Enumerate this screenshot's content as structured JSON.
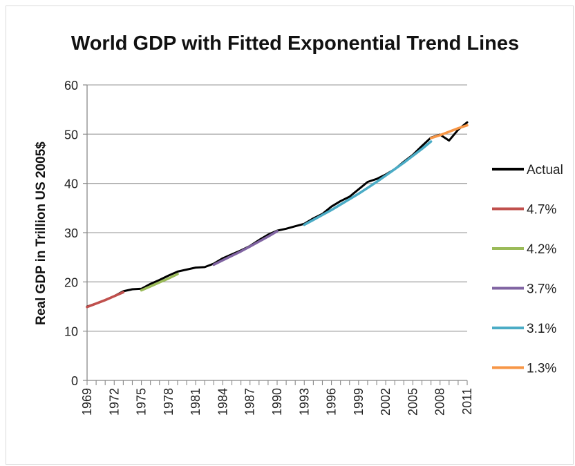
{
  "chart_data": {
    "type": "line",
    "title": "World GDP with Fitted Exponential Trend Lines",
    "ylabel": "Real GDP in Trillion US 2005$",
    "xlabel": "",
    "ylim": [
      0,
      60
    ],
    "yticks": [
      0,
      10,
      20,
      30,
      40,
      50,
      60
    ],
    "xlim": [
      1969,
      2011
    ],
    "xtick_labels": [
      "1969",
      "1972",
      "1975",
      "1978",
      "1981",
      "1984",
      "1987",
      "1990",
      "1993",
      "1996",
      "1999",
      "2002",
      "2005",
      "2008",
      "2011"
    ],
    "grid": true,
    "legend": "right",
    "series": [
      {
        "name": "Actual",
        "color": "#000000",
        "x": [
          1969,
          1970,
          1971,
          1972,
          1973,
          1974,
          1975,
          1976,
          1977,
          1978,
          1979,
          1980,
          1981,
          1982,
          1983,
          1984,
          1985,
          1986,
          1987,
          1988,
          1989,
          1990,
          1991,
          1992,
          1993,
          1994,
          1995,
          1996,
          1997,
          1998,
          1999,
          2000,
          2001,
          2002,
          2003,
          2004,
          2005,
          2006,
          2007,
          2008,
          2009,
          2010,
          2011
        ],
        "values": [
          15.0,
          15.6,
          16.3,
          17.1,
          18.1,
          18.5,
          18.6,
          19.6,
          20.4,
          21.3,
          22.1,
          22.5,
          22.9,
          23.0,
          23.7,
          24.8,
          25.6,
          26.4,
          27.3,
          28.5,
          29.6,
          30.4,
          30.8,
          31.3,
          31.8,
          32.9,
          33.8,
          35.3,
          36.4,
          37.3,
          38.8,
          40.3,
          40.9,
          41.8,
          42.9,
          44.4,
          45.8,
          47.6,
          49.3,
          49.9,
          48.7,
          50.9,
          52.4
        ]
      },
      {
        "name": "4.7%",
        "color": "#c0504d",
        "x": [
          1969,
          1970,
          1971,
          1972,
          1973
        ],
        "values": [
          14.9,
          15.6,
          16.3,
          17.1,
          17.9
        ]
      },
      {
        "name": "4.2%",
        "color": "#9bbb59",
        "x": [
          1975,
          1976,
          1977,
          1978,
          1979
        ],
        "values": [
          18.3,
          19.1,
          19.9,
          20.7,
          21.6
        ]
      },
      {
        "name": "3.7%",
        "color": "#8064a2",
        "x": [
          1983,
          1984,
          1985,
          1986,
          1987,
          1988,
          1989,
          1990
        ],
        "values": [
          23.5,
          24.4,
          25.3,
          26.2,
          27.2,
          28.2,
          29.2,
          30.3
        ]
      },
      {
        "name": "3.1%",
        "color": "#4bacc6",
        "x": [
          1993,
          1994,
          1995,
          1996,
          1997,
          1998,
          1999,
          2000,
          2001,
          2002,
          2003,
          2004,
          2005,
          2006,
          2007
        ],
        "values": [
          31.6,
          32.6,
          33.6,
          34.6,
          35.7,
          36.8,
          37.9,
          39.1,
          40.3,
          41.6,
          42.9,
          44.2,
          45.6,
          47.0,
          48.5
        ]
      },
      {
        "name": "1.3%",
        "color": "#f79646",
        "x": [
          2007,
          2008,
          2009,
          2010,
          2011
        ],
        "values": [
          49.2,
          49.8,
          50.5,
          51.2,
          51.8
        ]
      }
    ]
  }
}
